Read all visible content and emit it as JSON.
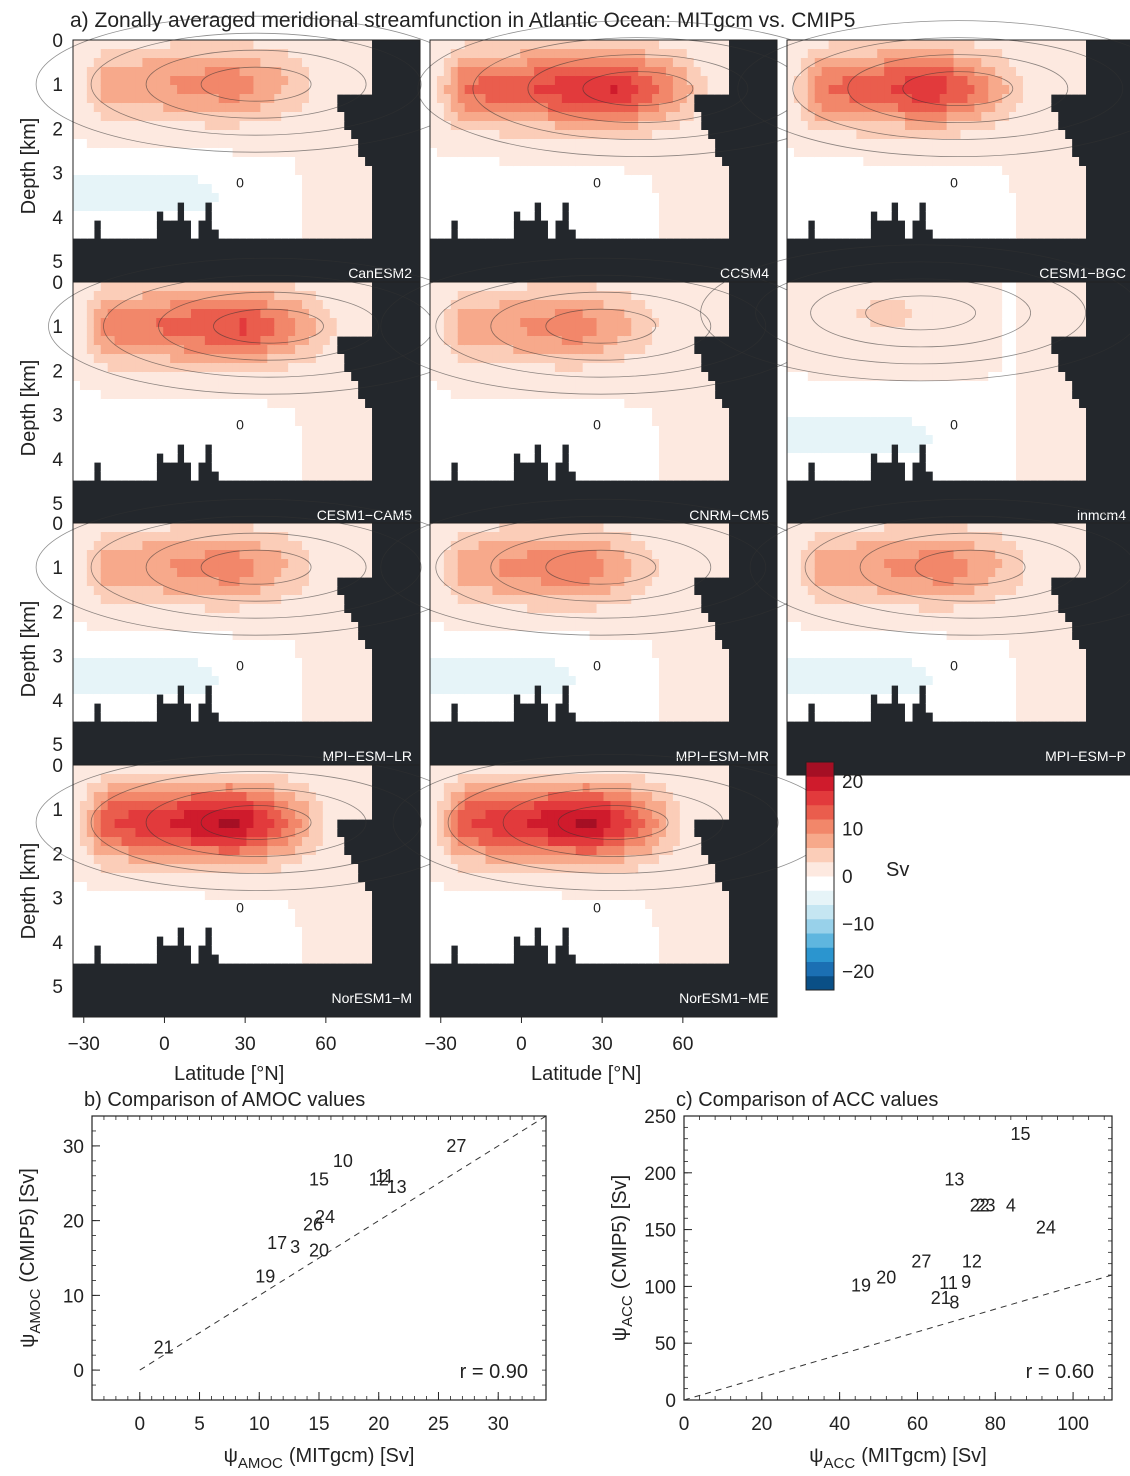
{
  "figure_title": "a) Zonally averaged meridional streamfunction in Atlantic Ocean: MITgcm vs. CMIP5",
  "colors": {
    "land": "#23272c",
    "colorbar": [
      "#0a4f86",
      "#1b6fb3",
      "#2b95cf",
      "#5fb6df",
      "#98d1ea",
      "#c5e6f2",
      "#e6f4f8",
      "#ffffff",
      "#fde9e0",
      "#fbcdb8",
      "#f7a98b",
      "#f2876a",
      "#ea5d4d",
      "#e23a3c",
      "#cf1b2c",
      "#a50f24"
    ]
  },
  "chart_data": [
    {
      "type": "heatmap",
      "panel": "a",
      "title": "a) Zonally averaged meridional streamfunction in Atlantic Ocean: MITgcm vs. CMIP5",
      "xlabel": "Latitude [°N]",
      "ylabel": "Depth [km]",
      "xticks": [
        -30,
        0,
        30,
        60
      ],
      "yticks": [
        0,
        1,
        2,
        3,
        4,
        5
      ],
      "xlim": [
        -34,
        95
      ],
      "ylim": [
        5.7,
        0
      ],
      "models": [
        {
          "name": "CanESM2",
          "peak": 12,
          "core_depth": 1.0,
          "max_lat": 40,
          "deep": -4
        },
        {
          "name": "CCSM4",
          "peak": 20,
          "core_depth": 1.1,
          "max_lat": 50,
          "deep": -1
        },
        {
          "name": "CESM1−BGC",
          "peak": 19,
          "core_depth": 1.1,
          "max_lat": 35,
          "deep": -1
        },
        {
          "name": "CESM1−CAM5",
          "peak": 17,
          "core_depth": 1.0,
          "max_lat": 45,
          "deep": -2
        },
        {
          "name": "CNRM−CM5",
          "peak": 12,
          "core_depth": 1.0,
          "max_lat": 35,
          "deep": -1
        },
        {
          "name": "inmcm4",
          "peak": 4,
          "core_depth": 0.7,
          "max_lat": 20,
          "deep": -4
        },
        {
          "name": "MPI−ESM−LR",
          "peak": 12,
          "core_depth": 1.0,
          "max_lat": 40,
          "deep": -4
        },
        {
          "name": "MPI−ESM−MR",
          "peak": 13,
          "core_depth": 1.0,
          "max_lat": 35,
          "deep": -4
        },
        {
          "name": "MPI−ESM−P",
          "peak": 12,
          "core_depth": 1.0,
          "max_lat": 40,
          "deep": -4
        },
        {
          "name": "NorESM1−M",
          "peak": 24,
          "core_depth": 1.3,
          "max_lat": 40,
          "deep": -1
        },
        {
          "name": "NorESM1−ME",
          "peak": 24,
          "core_depth": 1.3,
          "max_lat": 40,
          "deep": -1
        }
      ],
      "contour_zero_label": "0",
      "colorbar": {
        "ticks": [
          20,
          10,
          0,
          -10,
          -20
        ],
        "tick_labels": [
          "20",
          "10",
          "0",
          "−10",
          "−20"
        ],
        "unit": "Sv",
        "range": [
          -24,
          24
        ],
        "levels": 16
      }
    },
    {
      "type": "scatter",
      "panel": "b",
      "title": "b) Comparison of AMOC values",
      "xlabel_symbol": "ψ",
      "xlabel_sub": "AMOC",
      "xlabel_rest": "(MITgcm) [Sv]",
      "ylabel_symbol": "ψ",
      "ylabel_sub": "AMOC",
      "ylabel_rest": "(CMIP5) [Sv]",
      "xlim": [
        -4,
        34
      ],
      "ylim": [
        -4,
        34
      ],
      "xticks": [
        0,
        5,
        10,
        15,
        20,
        25,
        30
      ],
      "yticks": [
        0,
        10,
        20,
        30
      ],
      "reference_line": "1:1",
      "correlation": "r = 0.90",
      "points": [
        {
          "label": "27",
          "x": 26.5,
          "y": 30.0
        },
        {
          "label": "10",
          "x": 17.0,
          "y": 28.0
        },
        {
          "label": "15",
          "x": 15.0,
          "y": 25.5
        },
        {
          "label": "11",
          "x": 20.5,
          "y": 26.0
        },
        {
          "label": "12",
          "x": 20.0,
          "y": 25.5
        },
        {
          "label": "13",
          "x": 21.5,
          "y": 24.5
        },
        {
          "label": "24",
          "x": 15.5,
          "y": 20.5
        },
        {
          "label": "26",
          "x": 14.5,
          "y": 19.5
        },
        {
          "label": "17",
          "x": 11.5,
          "y": 17.0
        },
        {
          "label": "3",
          "x": 13.0,
          "y": 16.5
        },
        {
          "label": "20",
          "x": 15.0,
          "y": 16.0
        },
        {
          "label": "19",
          "x": 10.5,
          "y": 12.5
        },
        {
          "label": "21",
          "x": 2.0,
          "y": 3.0
        }
      ]
    },
    {
      "type": "scatter",
      "panel": "c",
      "title": "c) Comparison of ACC values",
      "xlabel_symbol": "ψ",
      "xlabel_sub": "ACC",
      "xlabel_rest": "(MITgcm) [Sv]",
      "ylabel_symbol": "ψ",
      "ylabel_sub": "ACC",
      "ylabel_rest": "(CMIP5) [Sv]",
      "xlim": [
        0,
        110
      ],
      "ylim": [
        0,
        250
      ],
      "xticks": [
        0,
        20,
        40,
        60,
        80,
        100
      ],
      "yticks": [
        0,
        50,
        100,
        150,
        200,
        250
      ],
      "reference_line": "1:1",
      "correlation": "r = 0.60",
      "points": [
        {
          "label": "15",
          "x": 86.5,
          "y": 234
        },
        {
          "label": "13",
          "x": 69.5,
          "y": 194
        },
        {
          "label": "22",
          "x": 76.0,
          "y": 171
        },
        {
          "label": "23",
          "x": 77.5,
          "y": 171
        },
        {
          "label": "4",
          "x": 84.0,
          "y": 171
        },
        {
          "label": "24",
          "x": 93.0,
          "y": 152
        },
        {
          "label": "12",
          "x": 74.0,
          "y": 122
        },
        {
          "label": "27",
          "x": 61.0,
          "y": 122
        },
        {
          "label": "11",
          "x": 68.0,
          "y": 103
        },
        {
          "label": "9",
          "x": 72.5,
          "y": 104
        },
        {
          "label": "20",
          "x": 52.0,
          "y": 108
        },
        {
          "label": "19",
          "x": 45.5,
          "y": 101
        },
        {
          "label": "21",
          "x": 66.0,
          "y": 90
        },
        {
          "label": "8",
          "x": 69.5,
          "y": 86
        }
      ]
    }
  ]
}
